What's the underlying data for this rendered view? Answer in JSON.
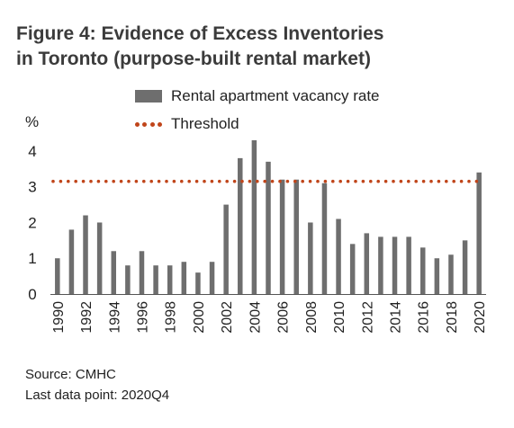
{
  "title_line1": "Figure 4: Evidence of Excess Inventories",
  "title_line2": "in Toronto (purpose-built rental market)",
  "legend": {
    "bar_label": "Rental apartment vacancy rate",
    "line_label": "Threshold"
  },
  "unit_label": "%",
  "source": "Source: CMHC",
  "last_point": "Last data point: 2020Q4",
  "colors": {
    "bar": "#6e6e6e",
    "threshold": "#c0451a"
  },
  "chart_data": {
    "type": "bar",
    "categories": [
      "1990",
      "1991",
      "1992",
      "1993",
      "1994",
      "1995",
      "1996",
      "1997",
      "1998",
      "1999",
      "2000",
      "2001",
      "2002",
      "2003",
      "2004",
      "2005",
      "2006",
      "2007",
      "2008",
      "2009",
      "2010",
      "2011",
      "2012",
      "2013",
      "2014",
      "2015",
      "2016",
      "2017",
      "2018",
      "2019",
      "2020"
    ],
    "x_tick_labels": [
      "1990",
      "1992",
      "1994",
      "1996",
      "1998",
      "2000",
      "2002",
      "2004",
      "2006",
      "2008",
      "2010",
      "2012",
      "2014",
      "2016",
      "2018",
      "2020"
    ],
    "series": [
      {
        "name": "Rental apartment vacancy rate",
        "values": [
          1.0,
          1.8,
          2.2,
          2.0,
          1.2,
          0.8,
          1.2,
          0.8,
          0.8,
          0.9,
          0.6,
          0.9,
          2.5,
          3.8,
          4.3,
          3.7,
          3.2,
          3.2,
          2.0,
          3.1,
          2.1,
          1.4,
          1.7,
          1.6,
          1.6,
          1.6,
          1.3,
          1.0,
          1.1,
          1.5,
          3.4
        ]
      }
    ],
    "threshold": {
      "name": "Threshold",
      "value": 3.15
    },
    "y_ticks": [
      0,
      1,
      2,
      3,
      4
    ],
    "ylim": [
      0,
      4.3
    ],
    "grid": false,
    "legend_position": "top"
  }
}
